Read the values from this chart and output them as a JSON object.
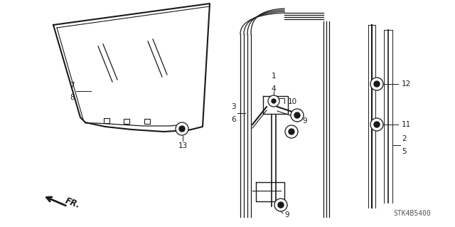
{
  "bg_color": "#ffffff",
  "fig_width": 6.4,
  "fig_height": 3.19,
  "dpi": 100,
  "diagram_code": "STK4B5400",
  "line_color": "#1a1a1a",
  "label_color": "#1a1a1a"
}
